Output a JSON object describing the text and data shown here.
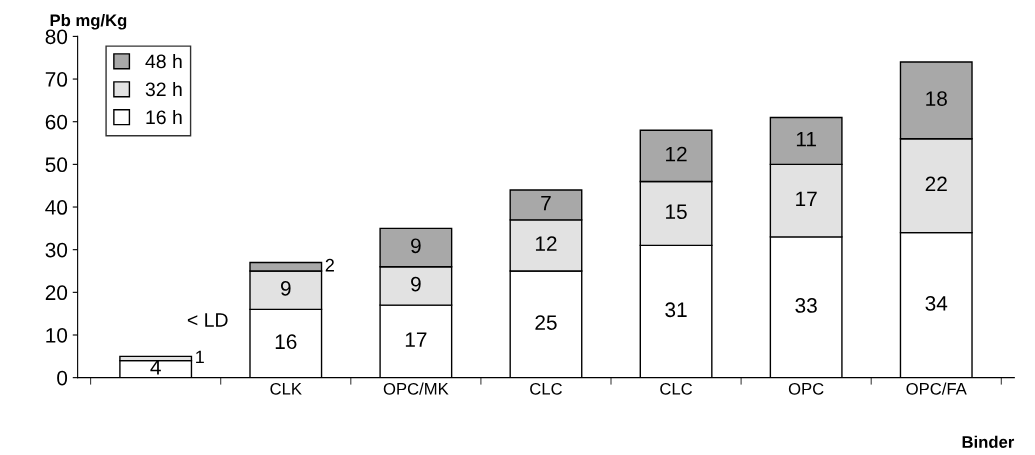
{
  "chart_data": {
    "type": "bar",
    "stacked": true,
    "ylabel": "Pb mg/Kg",
    "xlabel": "Binder",
    "categories": [
      null,
      "CLK",
      "OPC/MK",
      "CLC",
      "CLC",
      "OPC",
      "OPC/FA"
    ],
    "series": [
      {
        "name": "16 h",
        "color": "#ffffff",
        "values": [
          4,
          16,
          17,
          25,
          31,
          33,
          34
        ]
      },
      {
        "name": "32 h",
        "color": "#e2e2e2",
        "values": [
          1,
          9,
          9,
          12,
          15,
          17,
          22
        ]
      },
      {
        "name": "48 h",
        "color": "#a8a8a8",
        "values": [
          null,
          2,
          9,
          7,
          12,
          11,
          18
        ]
      }
    ],
    "ylim": [
      0,
      80
    ],
    "yticks": [
      0,
      10,
      20,
      30,
      40,
      50,
      60,
      70,
      80
    ],
    "data_labels": true,
    "legend": "top left",
    "grid": false,
    "annotations": [
      "< LD"
    ]
  }
}
